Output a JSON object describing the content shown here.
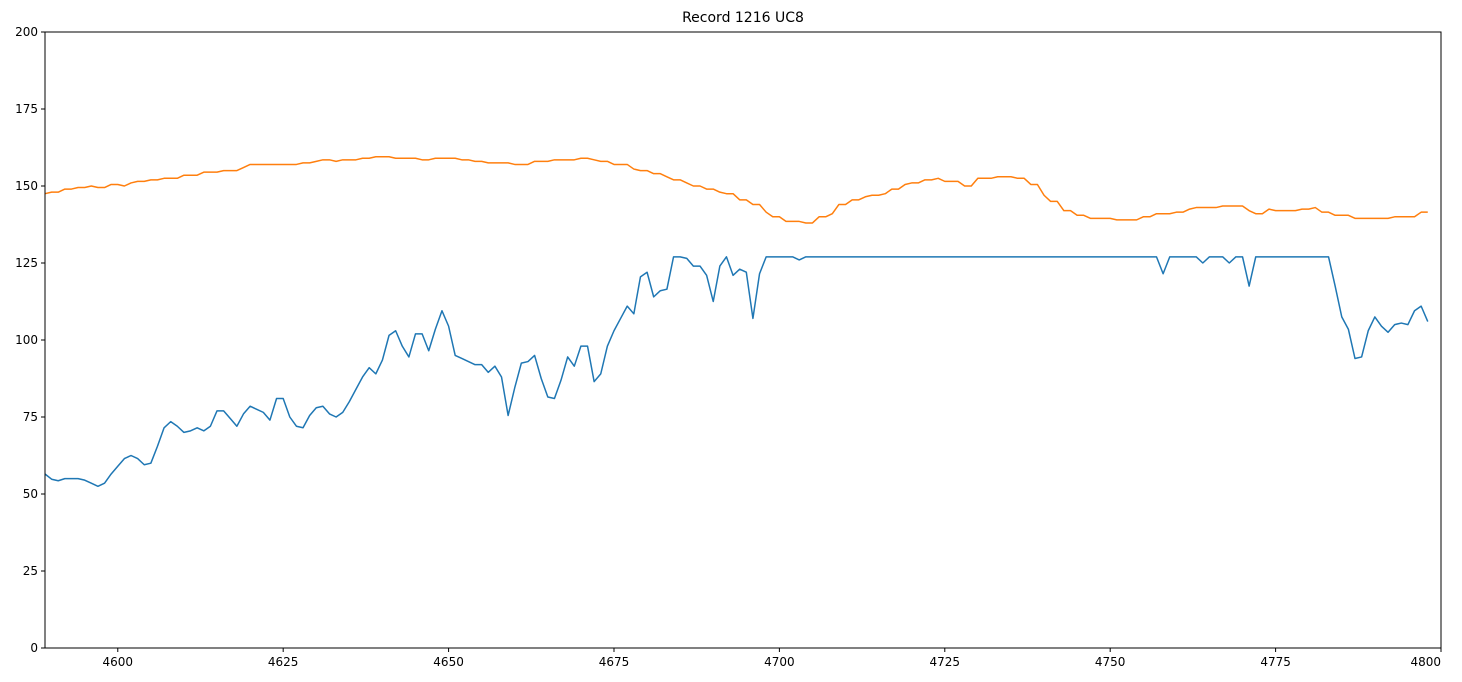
{
  "chart_data": {
    "type": "line",
    "title": "Record 1216 UC8",
    "x": [
      4589,
      4590,
      4591,
      4592,
      4593,
      4594,
      4595,
      4596,
      4597,
      4598,
      4599,
      4600,
      4601,
      4602,
      4603,
      4604,
      4605,
      4606,
      4607,
      4608,
      4609,
      4610,
      4611,
      4612,
      4613,
      4614,
      4615,
      4616,
      4617,
      4618,
      4619,
      4620,
      4621,
      4622,
      4623,
      4624,
      4625,
      4626,
      4627,
      4628,
      4629,
      4630,
      4631,
      4632,
      4633,
      4634,
      4635,
      4636,
      4637,
      4638,
      4639,
      4640,
      4641,
      4642,
      4643,
      4644,
      4645,
      4646,
      4647,
      4648,
      4649,
      4650,
      4651,
      4652,
      4653,
      4654,
      4655,
      4656,
      4657,
      4658,
      4659,
      4660,
      4661,
      4662,
      4663,
      4664,
      4665,
      4666,
      4667,
      4668,
      4669,
      4670,
      4671,
      4672,
      4673,
      4674,
      4675,
      4676,
      4677,
      4678,
      4679,
      4680,
      4681,
      4682,
      4683,
      4684,
      4685,
      4686,
      4687,
      4688,
      4689,
      4690,
      4691,
      4692,
      4693,
      4694,
      4695,
      4696,
      4697,
      4698,
      4699,
      4700,
      4701,
      4702,
      4703,
      4704,
      4705,
      4706,
      4707,
      4708,
      4709,
      4710,
      4711,
      4712,
      4713,
      4714,
      4715,
      4716,
      4717,
      4718,
      4719,
      4720,
      4721,
      4722,
      4723,
      4724,
      4725,
      4726,
      4727,
      4728,
      4729,
      4730,
      4731,
      4732,
      4733,
      4734,
      4735,
      4736,
      4737,
      4738,
      4739,
      4740,
      4741,
      4742,
      4743,
      4744,
      4745,
      4746,
      4747,
      4748,
      4749,
      4750,
      4751,
      4752,
      4753,
      4754,
      4755,
      4756,
      4757,
      4758,
      4759,
      4760,
      4761,
      4762,
      4763,
      4764,
      4765,
      4766,
      4767,
      4768,
      4769,
      4770,
      4771,
      4772,
      4773,
      4774,
      4775,
      4776,
      4777,
      4778,
      4779,
      4780,
      4781,
      4782,
      4783,
      4784,
      4785,
      4786,
      4787,
      4788,
      4789,
      4790,
      4791,
      4792,
      4793,
      4794,
      4795,
      4796,
      4797,
      4798
    ],
    "series": [
      {
        "color": "#1f77b4",
        "values": [
          56.5,
          54.8,
          54.3,
          55,
          55,
          55,
          54.5,
          53.5,
          52.5,
          53.5,
          56.5,
          59,
          61.5,
          62.5,
          61.5,
          59.5,
          60,
          65.5,
          71.5,
          73.5,
          72,
          70,
          70.5,
          71.5,
          70.5,
          72,
          77,
          77,
          74.5,
          72,
          76,
          78.5,
          77.5,
          76.5,
          74,
          81,
          81,
          75,
          72,
          71.5,
          75.5,
          78,
          78.5,
          76,
          75,
          76.5,
          80,
          84,
          88,
          91,
          89,
          93.5,
          101.5,
          103,
          98,
          94.5,
          102,
          102,
          96.5,
          103.5,
          109.5,
          104.5,
          95,
          94,
          93,
          92,
          92,
          89.5,
          91.5,
          88,
          75.5,
          84.5,
          92.5,
          93,
          95,
          87.5,
          81.5,
          81,
          87,
          94.5,
          91.5,
          98,
          98,
          86.5,
          89,
          98,
          103,
          107,
          111,
          108.5,
          120.5,
          122,
          114,
          116,
          116.5,
          127,
          127,
          126.5,
          124,
          124,
          121,
          112.5,
          124,
          127,
          121,
          123,
          122,
          107,
          121.5,
          127,
          127,
          127,
          127,
          127,
          126,
          127,
          127,
          127,
          127,
          127,
          127,
          127,
          127,
          127,
          127,
          127,
          127,
          127,
          127,
          127,
          127,
          127,
          127,
          127,
          127,
          127,
          127,
          127,
          127,
          127,
          127,
          127,
          127,
          127,
          127,
          127,
          127,
          127,
          127,
          127,
          127,
          127,
          127,
          127,
          127,
          127,
          127,
          127,
          127,
          127,
          127,
          127,
          127,
          127,
          127,
          127,
          127,
          127,
          127,
          121.5,
          127,
          127,
          127,
          127,
          127,
          125,
          127,
          127,
          127,
          125,
          127,
          127,
          117.5,
          127,
          127,
          127,
          127,
          127,
          127,
          127,
          127,
          127,
          127,
          127,
          127,
          117.5,
          107.5,
          103.5,
          94,
          94.5,
          103,
          107.5,
          104.5,
          102.5,
          105,
          105.5,
          105,
          109.5,
          111,
          106
        ]
      },
      {
        "color": "#ff7f0e",
        "values": [
          147.5,
          148,
          148,
          149,
          149,
          149.5,
          149.5,
          150,
          149.5,
          149.5,
          150.5,
          150.5,
          150,
          151,
          151.5,
          151.5,
          152,
          152,
          152.5,
          152.5,
          152.5,
          153.5,
          153.5,
          153.5,
          154.5,
          154.5,
          154.5,
          155,
          155,
          155,
          156,
          157,
          157,
          157,
          157,
          157,
          157,
          157,
          157,
          157.5,
          157.5,
          158,
          158.5,
          158.5,
          158,
          158.5,
          158.5,
          158.5,
          159,
          159,
          159.5,
          159.5,
          159.5,
          159,
          159,
          159,
          159,
          158.5,
          158.5,
          159,
          159,
          159,
          159,
          158.5,
          158.5,
          158,
          158,
          157.5,
          157.5,
          157.5,
          157.5,
          157,
          157,
          157,
          158,
          158,
          158,
          158.5,
          158.5,
          158.5,
          158.5,
          159,
          159,
          158.5,
          158,
          158,
          157,
          157,
          157,
          155.5,
          155,
          155,
          154,
          154,
          153,
          152,
          152,
          151,
          150,
          150,
          149,
          149,
          148,
          147.5,
          147.5,
          145.5,
          145.5,
          144,
          144,
          141.5,
          140,
          140,
          138.5,
          138.5,
          138.5,
          138,
          138,
          140,
          140,
          141,
          144,
          144,
          145.5,
          145.5,
          146.5,
          147,
          147,
          147.5,
          149,
          149,
          150.5,
          151,
          151,
          152,
          152,
          152.5,
          151.5,
          151.5,
          151.5,
          150,
          150,
          152.5,
          152.5,
          152.5,
          153,
          153,
          153,
          152.5,
          152.5,
          150.5,
          150.5,
          147,
          145,
          145,
          142,
          142,
          140.5,
          140.5,
          139.5,
          139.5,
          139.5,
          139.5,
          139,
          139,
          139,
          139,
          140,
          140,
          141,
          141,
          141,
          141.5,
          141.5,
          142.5,
          143,
          143,
          143,
          143,
          143.5,
          143.5,
          143.5,
          143.5,
          142,
          141,
          141,
          142.5,
          142,
          142,
          142,
          142,
          142.5,
          142.5,
          143,
          141.5,
          141.5,
          140.5,
          140.5,
          140.5,
          139.5,
          139.5,
          139.5,
          139.5,
          139.5,
          139.5,
          140,
          140,
          140,
          140,
          141.5,
          141.5
        ]
      }
    ],
    "xlim": [
      4589,
      4800
    ],
    "xticks": [
      4600,
      4625,
      4650,
      4675,
      4700,
      4725,
      4750,
      4775,
      4800
    ],
    "ylim": [
      0,
      200
    ],
    "yticks": [
      0,
      25,
      50,
      75,
      100,
      125,
      150,
      175,
      200
    ]
  }
}
